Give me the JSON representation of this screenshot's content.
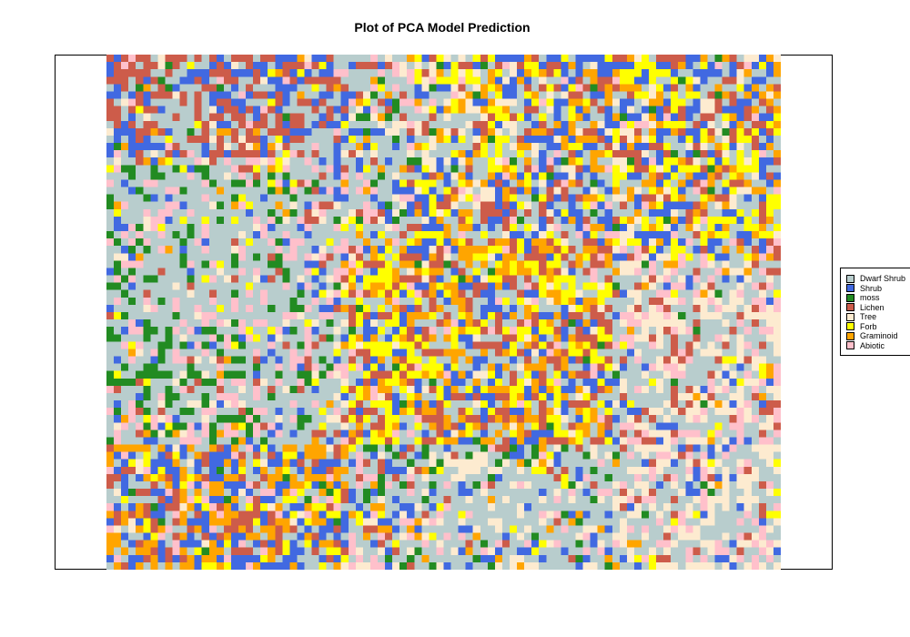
{
  "chart_data": {
    "type": "heatmap",
    "title": "Plot of PCA Model Prediction",
    "xlabel": "",
    "ylabel": "",
    "axes": "none",
    "classes": [
      {
        "name": "Dwarf Shrub",
        "color": "#b8cdcd"
      },
      {
        "name": "Shrub",
        "color": "#4169e1"
      },
      {
        "name": "moss",
        "color": "#228b22"
      },
      {
        "name": "Lichen",
        "color": "#cd5c4a"
      },
      {
        "name": "Tree",
        "color": "#fdebd0"
      },
      {
        "name": "Forb",
        "color": "#ffff00"
      },
      {
        "name": "Graminoid",
        "color": "#ffa500"
      },
      {
        "name": "Abiotic",
        "color": "#ffc0cb"
      }
    ],
    "legend_position": "right",
    "grid": false,
    "raster_columns": 92,
    "raster_rows": 70
  }
}
